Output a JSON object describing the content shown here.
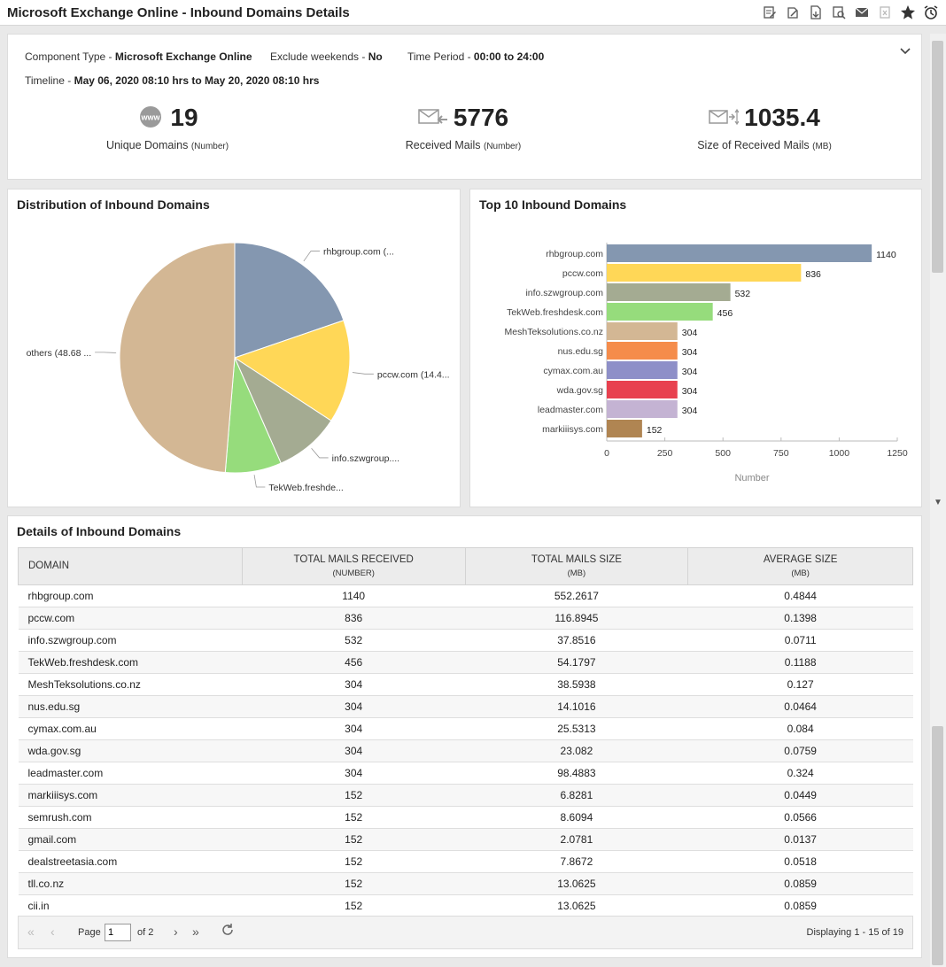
{
  "window": {
    "title": "Microsoft Exchange Online - Inbound Domains Details"
  },
  "toolbar_icons": [
    "edit-report-icon",
    "edit-icon",
    "export-pdf-icon",
    "print-preview-icon",
    "email-icon",
    "export-excel-icon",
    "favorite-star-icon",
    "alarm-clock-icon"
  ],
  "summary": {
    "component_type_label": "Component Type - ",
    "component_type_value": "Microsoft Exchange Online",
    "exclude_weekends_label": "Exclude weekends - ",
    "exclude_weekends_value": "No",
    "time_period_label": "Time Period - ",
    "time_period_value": "00:00 to 24:00",
    "timeline_label": "Timeline - ",
    "timeline_value": "May 06, 2020 08:10 hrs to May 20, 2020 08:10 hrs",
    "kpis": [
      {
        "value": "19",
        "label": "Unique Domains ",
        "unit": "(Number)",
        "icon": "www-icon"
      },
      {
        "value": "5776",
        "label": "Received Mails ",
        "unit": "(Number)",
        "icon": "received-mail-icon"
      },
      {
        "value": "1035.4",
        "label": "Size of Received Mails ",
        "unit": "(MB)",
        "icon": "mail-size-icon"
      }
    ]
  },
  "pie_panel": {
    "title": "Distribution of Inbound Domains"
  },
  "bar_panel": {
    "title": "Top 10 Inbound Domains"
  },
  "chart_data": [
    {
      "type": "pie",
      "title": "Distribution of Inbound Domains",
      "slices": [
        {
          "label": "rhbgroup.com (...",
          "category": "rhbgroup.com",
          "value": 1140,
          "color": "#8497b0"
        },
        {
          "label": "pccw.com (14.4...",
          "category": "pccw.com",
          "value": 836,
          "color": "#ffd757"
        },
        {
          "label": "info.szwgroup....",
          "category": "info.szwgroup.com",
          "value": 532,
          "color": "#a4ab92"
        },
        {
          "label": "TekWeb.freshde...",
          "category": "TekWeb.freshdesk.com",
          "value": 456,
          "color": "#96dc7c"
        },
        {
          "label": "others (48.68 ...",
          "category": "others",
          "value": 2812,
          "color": "#d3b794"
        }
      ]
    },
    {
      "type": "bar",
      "orientation": "horizontal",
      "title": "Top 10 Inbound Domains",
      "xlabel": "Number",
      "xlim": [
        0,
        1250
      ],
      "xticks": [
        0,
        250,
        500,
        750,
        1000,
        1250
      ],
      "categories": [
        "rhbgroup.com",
        "pccw.com",
        "info.szwgroup.com",
        "TekWeb.freshdesk.com",
        "MeshTeksolutions.co.nz",
        "nus.edu.sg",
        "cymax.com.au",
        "wda.gov.sg",
        "leadmaster.com",
        "markiiisys.com"
      ],
      "values": [
        1140,
        836,
        532,
        456,
        304,
        304,
        304,
        304,
        304,
        152
      ],
      "colors": [
        "#8497b0",
        "#ffd757",
        "#a4ab92",
        "#96dc7c",
        "#d3b794",
        "#f58c4b",
        "#8e8fc8",
        "#e8414f",
        "#c4b3d3",
        "#b08552"
      ]
    }
  ],
  "table": {
    "title": "Details of Inbound Domains",
    "columns": [
      {
        "label": "DOMAIN",
        "sub": ""
      },
      {
        "label": "TOTAL MAILS RECEIVED",
        "sub": "(NUMBER)"
      },
      {
        "label": "TOTAL MAILS SIZE",
        "sub": "(MB)"
      },
      {
        "label": "AVERAGE SIZE",
        "sub": "(MB)"
      }
    ],
    "rows": [
      [
        "rhbgroup.com",
        "1140",
        "552.2617",
        "0.4844"
      ],
      [
        "pccw.com",
        "836",
        "116.8945",
        "0.1398"
      ],
      [
        "info.szwgroup.com",
        "532",
        "37.8516",
        "0.0711"
      ],
      [
        "TekWeb.freshdesk.com",
        "456",
        "54.1797",
        "0.1188"
      ],
      [
        "MeshTeksolutions.co.nz",
        "304",
        "38.5938",
        "0.127"
      ],
      [
        "nus.edu.sg",
        "304",
        "14.1016",
        "0.0464"
      ],
      [
        "cymax.com.au",
        "304",
        "25.5313",
        "0.084"
      ],
      [
        "wda.gov.sg",
        "304",
        "23.082",
        "0.0759"
      ],
      [
        "leadmaster.com",
        "304",
        "98.4883",
        "0.324"
      ],
      [
        "markiiisys.com",
        "152",
        "6.8281",
        "0.0449"
      ],
      [
        "semrush.com",
        "152",
        "8.6094",
        "0.0566"
      ],
      [
        "gmail.com",
        "152",
        "2.0781",
        "0.0137"
      ],
      [
        "dealstreetasia.com",
        "152",
        "7.8672",
        "0.0518"
      ],
      [
        "tll.co.nz",
        "152",
        "13.0625",
        "0.0859"
      ],
      [
        "cii.in",
        "152",
        "13.0625",
        "0.0859"
      ]
    ]
  },
  "pager": {
    "page_label": "Page",
    "page_value": "1",
    "of_label": "of 2",
    "display_text": "Displaying 1 - 15 of 19"
  }
}
